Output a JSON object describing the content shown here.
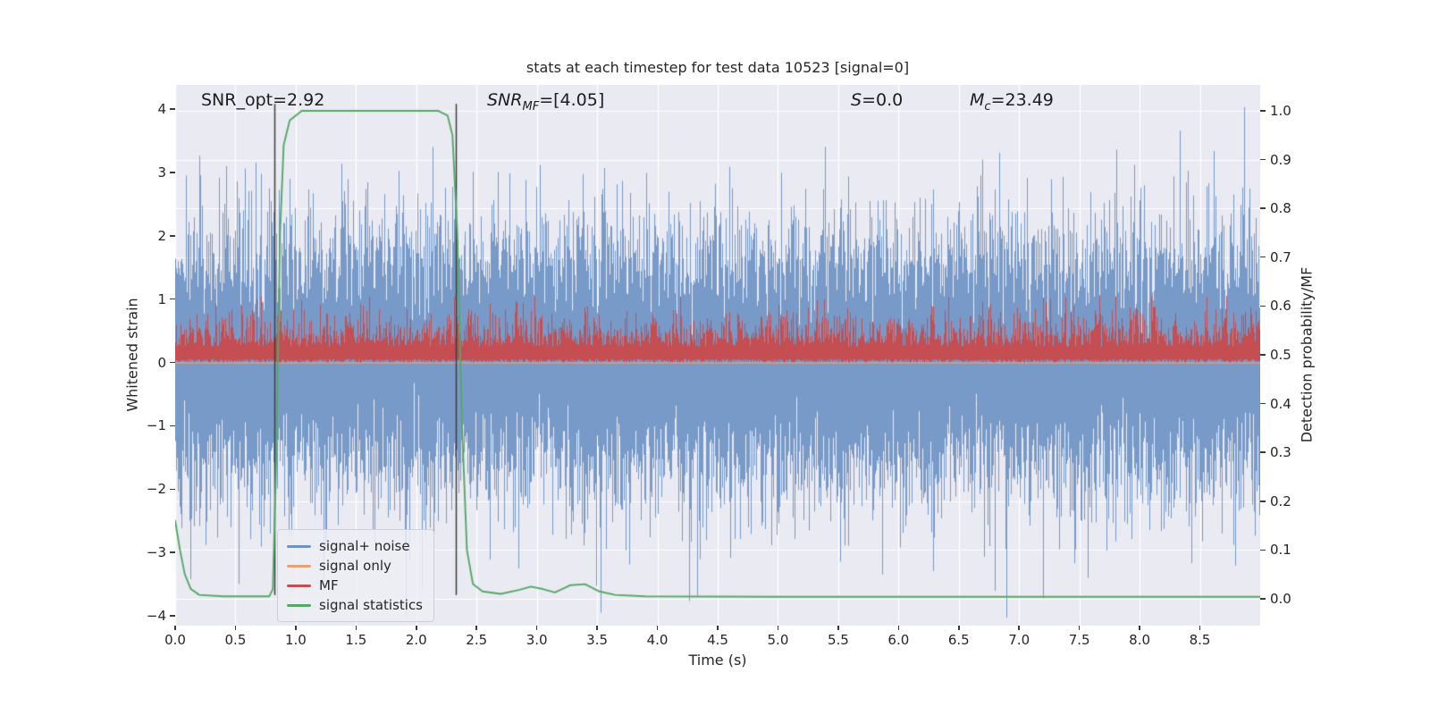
{
  "figure": {
    "title": "stats at each timestep for test data 10523 [signal=0]"
  },
  "annotations": {
    "snr_opt": "SNR_opt=2.92",
    "snr_mf": {
      "pre": "SNR",
      "sub": "MF",
      "post": "=[4.05]"
    },
    "s": {
      "pre": "S",
      "post": "=0.0"
    },
    "mc": {
      "pre": "M",
      "sub": "c",
      "post": "=23.49"
    }
  },
  "chart_data": {
    "type": "line",
    "title": "stats at each timestep for test data 10523 [signal=0]",
    "xlabel": "Time (s)",
    "ylabel_left": "Whitened strain",
    "ylabel_right": "Detection probability/MF",
    "xlim": [
      0,
      9.0
    ],
    "ylim_left": [
      -4.155,
      4.381
    ],
    "ylim_right": [
      -0.055,
      1.053
    ],
    "x_tick_values": [
      0,
      0.5,
      1,
      1.5,
      2,
      2.5,
      3,
      3.5,
      4,
      4.5,
      5,
      5.5,
      6,
      6.5,
      7,
      7.5,
      8,
      8.5
    ],
    "x_tick_labels": [
      "0.0",
      "0.5",
      "1.0",
      "1.5",
      "2.0",
      "2.5",
      "3.0",
      "3.5",
      "4.0",
      "4.5",
      "5.0",
      "5.5",
      "6.0",
      "6.5",
      "7.0",
      "7.5",
      "8.0",
      "8.5"
    ],
    "y_left_tick_values": [
      4,
      3,
      2,
      1,
      0,
      -1,
      -2,
      -3,
      -4
    ],
    "y_left_tick_labels": [
      "4",
      "3",
      "2",
      "1",
      "0",
      "−1",
      "−2",
      "−3",
      "−4"
    ],
    "y_right_tick_values": [
      1.0,
      0.9,
      0.8,
      0.7,
      0.6,
      0.5,
      0.4,
      0.3,
      0.2,
      0.1,
      0.0
    ],
    "y_right_tick_labels": [
      "1.0",
      "0.9",
      "0.8",
      "0.7",
      "0.6",
      "0.5",
      "0.4",
      "0.3",
      "0.2",
      "0.1",
      "0.0"
    ],
    "grid": {
      "show": true,
      "color": "#ffffff"
    },
    "background": "#eaeaf2",
    "legend": {
      "position": "lower left",
      "items": [
        {
          "label": "signal+ noise",
          "color": "#6e93c4"
        },
        {
          "label": "signal only",
          "color": "#e8a175"
        },
        {
          "label": "MF",
          "color": "#c44e52"
        },
        {
          "label": "signal statistics",
          "color": "#55a868"
        }
      ]
    },
    "series": [
      {
        "name": "signal+ noise",
        "kind": "gaussian-noise-envelope",
        "axis": "left",
        "color": "#6e93c4",
        "mean": 0,
        "std": 1.0,
        "observed_range": [
          -3.9,
          4.0
        ],
        "samples_per_pixel": 15
      },
      {
        "name": "signal only",
        "kind": "constant",
        "axis": "left",
        "color": "#e8a175",
        "value": 0
      },
      {
        "name": "MF",
        "kind": "noise-band",
        "axis": "left",
        "color": "#c44e52",
        "band_low": 0.0,
        "band_high_typical": [
          0.3,
          0.9
        ],
        "band_high_max": 1.04
      },
      {
        "name": "signal statistics",
        "kind": "line",
        "axis": "right",
        "color": "#55a868",
        "points": [
          [
            0,
            0.16
          ],
          [
            0.04,
            0.1
          ],
          [
            0.08,
            0.05
          ],
          [
            0.13,
            0.02
          ],
          [
            0.2,
            0.008
          ],
          [
            0.4,
            0.005
          ],
          [
            0.78,
            0.005
          ],
          [
            0.81,
            0.02
          ],
          [
            0.84,
            0.3
          ],
          [
            0.87,
            0.75
          ],
          [
            0.9,
            0.93
          ],
          [
            0.95,
            0.98
          ],
          [
            1.05,
            1.0
          ],
          [
            2.18,
            1.0
          ],
          [
            2.26,
            0.99
          ],
          [
            2.3,
            0.95
          ],
          [
            2.34,
            0.75
          ],
          [
            2.38,
            0.35
          ],
          [
            2.42,
            0.1
          ],
          [
            2.47,
            0.03
          ],
          [
            2.55,
            0.015
          ],
          [
            2.7,
            0.01
          ],
          [
            2.85,
            0.018
          ],
          [
            2.95,
            0.025
          ],
          [
            3.05,
            0.02
          ],
          [
            3.15,
            0.013
          ],
          [
            3.28,
            0.028
          ],
          [
            3.4,
            0.03
          ],
          [
            3.52,
            0.015
          ],
          [
            3.65,
            0.008
          ],
          [
            3.9,
            0.005
          ],
          [
            5.0,
            0.004
          ],
          [
            9.0,
            0.004
          ]
        ]
      }
    ],
    "vlines": {
      "x": [
        0.82,
        2.33
      ],
      "color": "#3d3d3d",
      "y_range_left": [
        -3.67,
        4.08
      ]
    }
  }
}
